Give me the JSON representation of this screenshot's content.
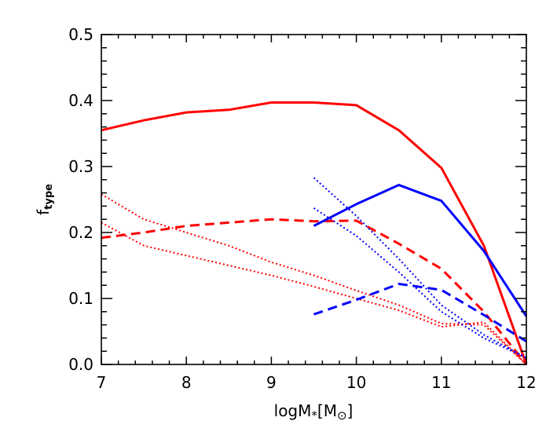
{
  "chart_data": {
    "type": "line",
    "xlabel_main": "logM",
    "xlabel_sub": "*",
    "xlabel_unit_open": "[M",
    "xlabel_unit_sub": "⊙",
    "xlabel_unit_close": "]",
    "ylabel_main": "f",
    "ylabel_sub": "type",
    "xlim": [
      7,
      12
    ],
    "ylim": [
      0,
      0.5
    ],
    "xticks": [
      7,
      8,
      9,
      10,
      11,
      12
    ],
    "xtick_labels": [
      "7",
      "8",
      "9",
      "10",
      "11",
      "12"
    ],
    "yticks": [
      0.0,
      0.1,
      0.2,
      0.3,
      0.4,
      0.5
    ],
    "ytick_labels": [
      "0.0",
      "0.1",
      "0.2",
      "0.3",
      "0.4",
      "0.5"
    ],
    "grid": false,
    "legend": "none",
    "colors": {
      "red": "#ff0000",
      "blue": "#0000ff"
    },
    "series": [
      {
        "color": "#ff0000",
        "style": "solid",
        "x": [
          7.0,
          7.5,
          8.0,
          8.5,
          9.0,
          9.5,
          10.0,
          10.5,
          11.0,
          11.5,
          12.0
        ],
        "y": [
          0.355,
          0.37,
          0.382,
          0.386,
          0.397,
          0.397,
          0.393,
          0.355,
          0.298,
          0.18,
          0.0
        ]
      },
      {
        "color": "#ff0000",
        "style": "dashed",
        "x": [
          7.0,
          7.5,
          8.0,
          8.5,
          9.0,
          9.5,
          10.0,
          10.5,
          11.0,
          11.5,
          12.0
        ],
        "y": [
          0.192,
          0.2,
          0.21,
          0.215,
          0.22,
          0.217,
          0.218,
          0.183,
          0.145,
          0.08,
          0.0
        ]
      },
      {
        "color": "#ff0000",
        "style": "dotted",
        "x": [
          7.0,
          7.5,
          8.0,
          8.5,
          9.0,
          9.5,
          10.0,
          10.5,
          11.0,
          11.5,
          12.0
        ],
        "y": [
          0.258,
          0.22,
          0.2,
          0.18,
          0.155,
          0.135,
          0.112,
          0.09,
          0.062,
          0.06,
          0.0
        ]
      },
      {
        "color": "#ff0000",
        "style": "dotted",
        "x": [
          7.0,
          7.5,
          8.0,
          8.5,
          9.0,
          9.5,
          10.0,
          10.5,
          11.0,
          11.5,
          12.0
        ],
        "y": [
          0.215,
          0.18,
          0.165,
          0.15,
          0.135,
          0.118,
          0.1,
          0.082,
          0.057,
          0.064,
          0.0
        ]
      },
      {
        "color": "#0000ff",
        "style": "solid",
        "x": [
          9.5,
          10.0,
          10.5,
          11.0,
          11.5,
          12.0
        ],
        "y": [
          0.21,
          0.243,
          0.272,
          0.248,
          0.172,
          0.073
        ]
      },
      {
        "color": "#0000ff",
        "style": "dashed",
        "x": [
          9.5,
          10.0,
          10.5,
          11.0,
          11.5,
          12.0
        ],
        "y": [
          0.076,
          0.098,
          0.122,
          0.113,
          0.075,
          0.035
        ]
      },
      {
        "color": "#0000ff",
        "style": "dotted",
        "x": [
          9.5,
          10.0,
          10.5,
          11.0,
          11.5,
          12.0
        ],
        "y": [
          0.283,
          0.225,
          0.16,
          0.09,
          0.045,
          0.01
        ]
      },
      {
        "color": "#0000ff",
        "style": "dotted",
        "x": [
          9.5,
          10.0,
          10.5,
          11.0,
          11.5,
          12.0
        ],
        "y": [
          0.237,
          0.195,
          0.14,
          0.08,
          0.04,
          0.01
        ]
      }
    ]
  }
}
